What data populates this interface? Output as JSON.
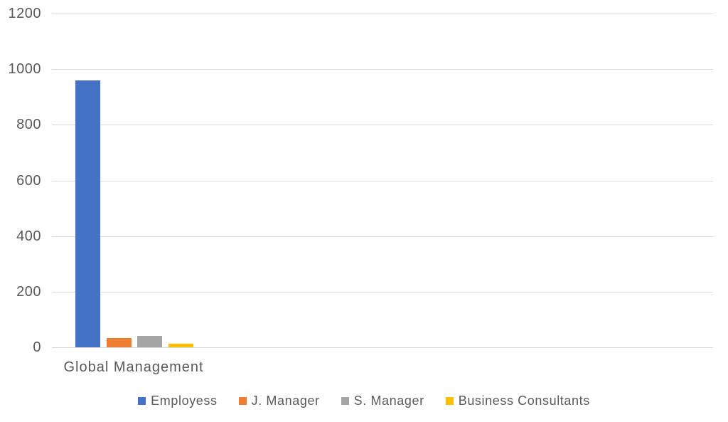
{
  "chart_data": {
    "type": "bar",
    "title": "",
    "xlabel": "",
    "ylabel": "",
    "categories": [
      "Global Management"
    ],
    "series": [
      {
        "name": "Employess",
        "values": [
          960
        ],
        "color": "#4472C4"
      },
      {
        "name": "J. Manager",
        "values": [
          33
        ],
        "color": "#ED7D31"
      },
      {
        "name": "S. Manager",
        "values": [
          40
        ],
        "color": "#A5A5A5"
      },
      {
        "name": "Business Consultants",
        "values": [
          12
        ],
        "color": "#FFC000"
      }
    ],
    "ylim": [
      0,
      1200
    ],
    "yticks": [
      0,
      200,
      400,
      600,
      800,
      1000,
      1200
    ],
    "grid": true,
    "legend_position": "bottom",
    "gridline_color": "#D9D9D9",
    "text_color": "#595959",
    "background_color": "#FFFFFF"
  }
}
